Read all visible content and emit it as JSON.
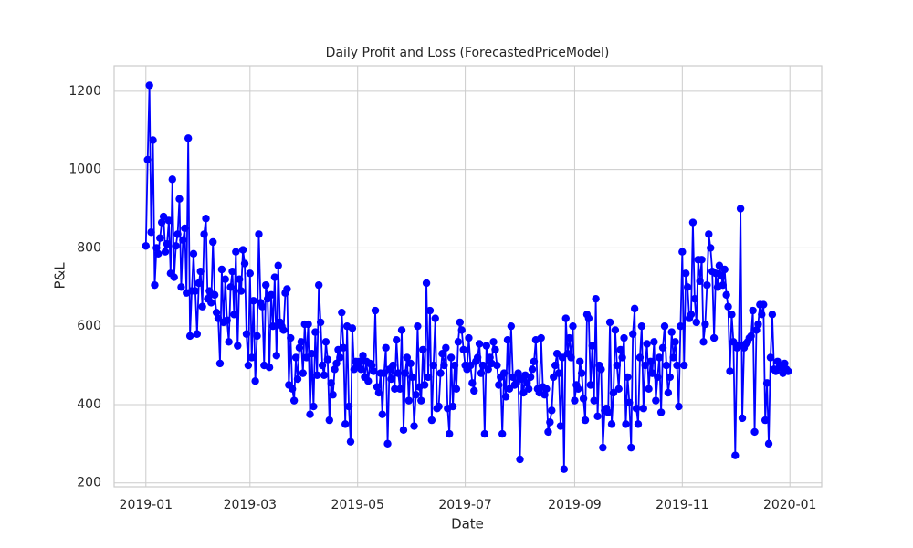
{
  "chart_data": {
    "type": "line",
    "title": "Daily Profit and Loss (ForecastedPriceModel)",
    "x_label": "Date",
    "y_label": "P&L",
    "color": "#0000ff",
    "grid": true,
    "x": [
      0,
      1,
      2,
      3,
      4,
      5,
      6,
      7,
      8,
      9,
      10,
      11,
      12,
      13,
      14,
      15,
      16,
      17,
      18,
      19,
      20,
      21,
      22,
      23,
      24,
      25,
      26,
      27,
      28,
      29,
      30,
      31,
      32,
      33,
      34,
      35,
      36,
      37,
      38,
      39,
      40,
      41,
      42,
      43,
      44,
      45,
      46,
      47,
      48,
      49,
      50,
      51,
      52,
      53,
      54,
      55,
      56,
      57,
      58,
      59,
      60,
      61,
      62,
      63,
      64,
      65,
      66,
      67,
      68,
      69,
      70,
      71,
      72,
      73,
      74,
      75,
      76,
      77,
      78,
      79,
      80,
      81,
      82,
      83,
      84,
      85,
      86,
      87,
      88,
      89,
      90,
      91,
      92,
      93,
      94,
      95,
      96,
      97,
      98,
      99,
      100,
      101,
      102,
      103,
      104,
      105,
      106,
      107,
      108,
      109,
      110,
      111,
      112,
      113,
      114,
      115,
      116,
      117,
      118,
      119,
      120,
      121,
      122,
      123,
      124,
      125,
      126,
      127,
      128,
      129,
      130,
      131,
      132,
      133,
      134,
      135,
      136,
      137,
      138,
      139,
      140,
      141,
      142,
      143,
      144,
      145,
      146,
      147,
      148,
      149,
      150,
      151,
      152,
      153,
      154,
      155,
      156,
      157,
      158,
      159,
      160,
      161,
      162,
      163,
      164,
      165,
      166,
      167,
      168,
      169,
      170,
      171,
      172,
      173,
      174,
      175,
      176,
      177,
      178,
      179,
      180,
      181,
      182,
      183,
      184,
      185,
      186,
      187,
      188,
      189,
      190,
      191,
      192,
      193,
      194,
      195,
      196,
      197,
      198,
      199,
      200,
      201,
      202,
      203,
      204,
      205,
      206,
      207,
      208,
      209,
      210,
      211,
      212,
      213,
      214,
      215,
      216,
      217,
      218,
      219,
      220,
      221,
      222,
      223,
      224,
      225,
      226,
      227,
      228,
      229,
      230,
      231,
      232,
      233,
      234,
      235,
      236,
      237,
      238,
      239,
      240,
      241,
      242,
      243,
      244,
      245,
      246,
      247,
      248,
      249,
      250,
      251,
      252,
      253,
      254,
      255,
      256,
      257,
      258,
      259,
      260,
      261,
      262,
      263,
      264,
      265,
      266,
      267,
      268,
      269,
      270,
      271,
      272,
      273,
      274,
      275,
      276,
      277,
      278,
      279,
      280,
      281,
      282,
      283,
      284,
      285,
      286,
      287,
      288,
      289,
      290,
      291,
      292,
      293,
      294,
      295,
      296,
      297,
      298,
      299,
      300,
      301,
      302,
      303,
      304,
      305,
      306,
      307,
      308,
      309,
      310,
      311,
      312,
      313,
      314,
      315,
      316,
      317,
      318,
      319,
      320,
      321,
      322,
      323,
      324,
      325,
      326,
      327,
      328,
      329,
      330,
      331,
      332,
      333,
      334,
      335,
      336,
      337,
      338,
      339,
      340,
      341,
      342,
      343,
      344,
      345,
      346,
      347,
      348,
      349,
      350,
      351,
      352,
      353,
      354,
      355,
      356,
      357,
      358,
      359,
      360,
      361,
      362,
      363,
      364
    ],
    "values": [
      805,
      1025,
      1215,
      840,
      1075,
      705,
      800,
      785,
      825,
      865,
      880,
      790,
      810,
      870,
      735,
      975,
      725,
      805,
      835,
      925,
      700,
      820,
      850,
      685,
      1080,
      575,
      690,
      785,
      690,
      580,
      710,
      740,
      650,
      835,
      875,
      670,
      690,
      660,
      815,
      680,
      635,
      620,
      505,
      745,
      610,
      720,
      615,
      560,
      700,
      740,
      630,
      790,
      550,
      720,
      690,
      795,
      760,
      580,
      500,
      735,
      520,
      665,
      460,
      575,
      835,
      660,
      650,
      500,
      705,
      670,
      495,
      680,
      600,
      725,
      525,
      755,
      610,
      600,
      590,
      685,
      695,
      450,
      570,
      440,
      410,
      520,
      465,
      545,
      560,
      480,
      605,
      520,
      605,
      375,
      530,
      395,
      585,
      475,
      705,
      610,
      500,
      475,
      560,
      515,
      360,
      455,
      425,
      490,
      505,
      540,
      520,
      635,
      545,
      350,
      600,
      395,
      305,
      595,
      490,
      510,
      500,
      510,
      490,
      525,
      470,
      510,
      460,
      505,
      500,
      485,
      640,
      445,
      430,
      480,
      375,
      480,
      545,
      300,
      490,
      465,
      500,
      440,
      565,
      480,
      440,
      590,
      335,
      480,
      520,
      410,
      505,
      470,
      345,
      425,
      600,
      445,
      410,
      540,
      450,
      710,
      470,
      640,
      360,
      500,
      620,
      390,
      395,
      480,
      530,
      500,
      545,
      390,
      325,
      520,
      395,
      500,
      440,
      560,
      610,
      590,
      540,
      500,
      490,
      570,
      500,
      455,
      435,
      510,
      520,
      555,
      480,
      500,
      325,
      550,
      490,
      520,
      505,
      560,
      540,
      500,
      450,
      470,
      325,
      480,
      420,
      565,
      440,
      600,
      470,
      450,
      455,
      480,
      260,
      465,
      430,
      475,
      455,
      440,
      470,
      490,
      510,
      565,
      440,
      430,
      570,
      445,
      425,
      440,
      330,
      355,
      385,
      470,
      500,
      530,
      480,
      345,
      520,
      235,
      620,
      530,
      570,
      520,
      600,
      410,
      450,
      440,
      510,
      480,
      415,
      360,
      630,
      620,
      450,
      550,
      410,
      670,
      370,
      500,
      490,
      290,
      385,
      390,
      380,
      610,
      350,
      430,
      590,
      500,
      440,
      540,
      520,
      570,
      350,
      470,
      405,
      290,
      580,
      645,
      390,
      350,
      520,
      600,
      390,
      500,
      555,
      440,
      510,
      480,
      560,
      410,
      470,
      520,
      380,
      545,
      600,
      500,
      430,
      470,
      585,
      520,
      560,
      500,
      395,
      600,
      790,
      500,
      735,
      700,
      620,
      630,
      865,
      670,
      610,
      770,
      715,
      770,
      560,
      605,
      705,
      835,
      800,
      740,
      570,
      735,
      700,
      755,
      730,
      705,
      745,
      680,
      650,
      485,
      630,
      560,
      270,
      545,
      550,
      900,
      365,
      545,
      555,
      560,
      570,
      575,
      640,
      330,
      590,
      605,
      655,
      630,
      655,
      360,
      455,
      300,
      520,
      630,
      490,
      485,
      510,
      495,
      500,
      480,
      505,
      490,
      485
    ],
    "xlim": [
      -18,
      383
    ],
    "xticks": [
      {
        "value": 0,
        "label": "2019-01"
      },
      {
        "value": 59,
        "label": "2019-03"
      },
      {
        "value": 120,
        "label": "2019-05"
      },
      {
        "value": 181,
        "label": "2019-07"
      },
      {
        "value": 243,
        "label": "2019-09"
      },
      {
        "value": 304,
        "label": "2019-11"
      },
      {
        "value": 365,
        "label": "2020-01"
      }
    ],
    "ylim": [
      190,
      1265
    ],
    "yticks": [
      200,
      400,
      600,
      800,
      1000,
      1200
    ]
  }
}
